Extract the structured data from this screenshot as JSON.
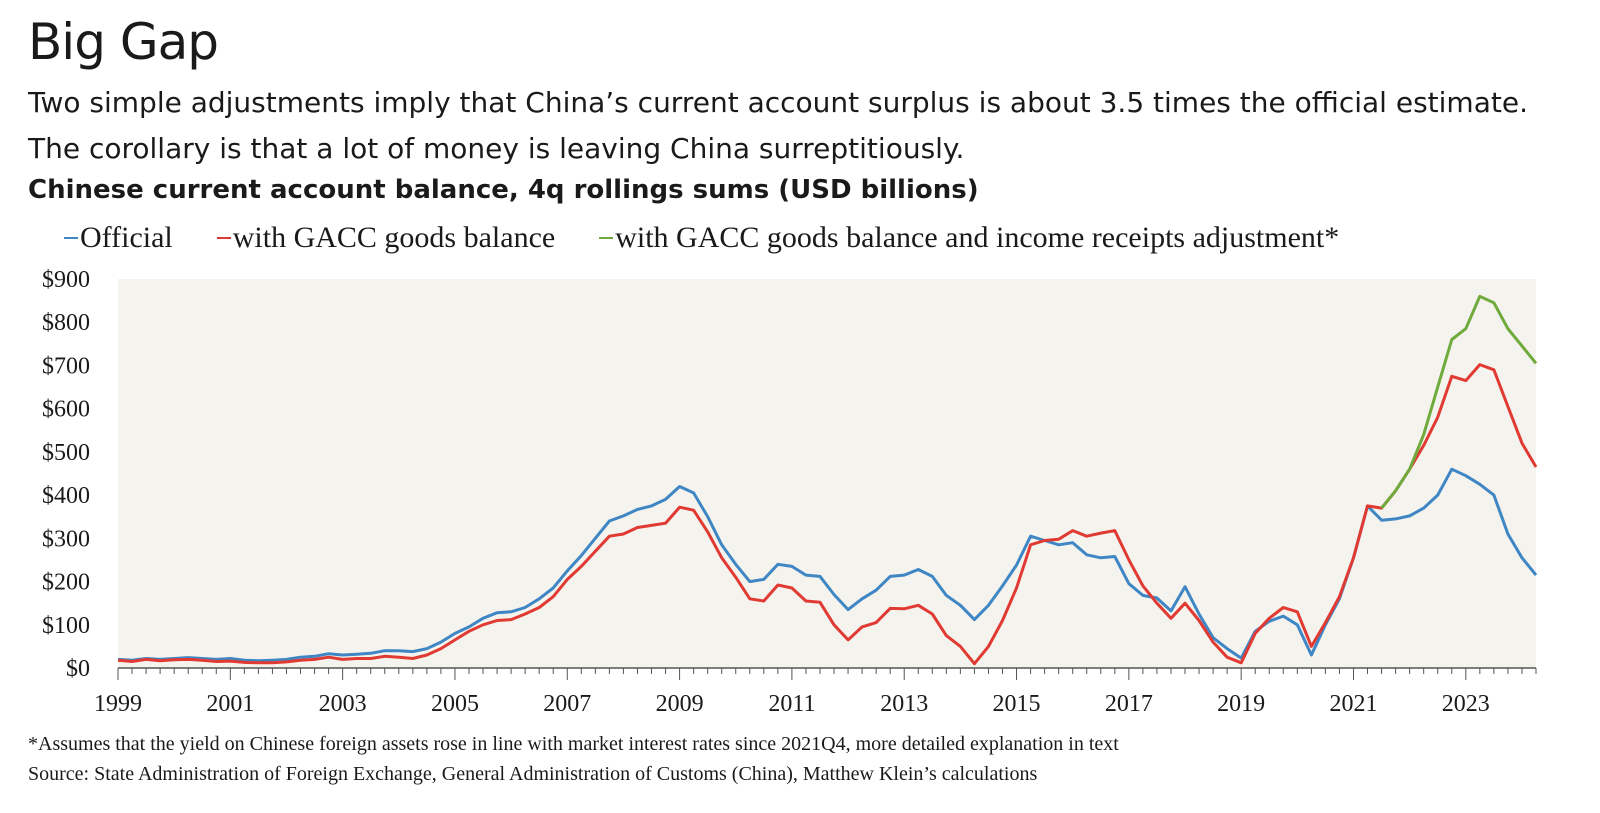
{
  "header": {
    "title": "Big Gap",
    "subtitle": "Two simple adjustments imply that China’s current account surplus is about 3.5 times the official estimate. The corollary is that a lot of money is leaving China surreptitiously.",
    "chart_title": "Chinese current account balance, 4q rollings sums (USD billions)"
  },
  "footer": {
    "footnote": "*Assumes that the yield on Chinese foreign assets rose in line with market interest rates since 2021Q4, more detailed explanation in text",
    "source": "Source: State Administration of Foreign Exchange, General Administration of Customs (China), Matthew Klein’s calculations"
  },
  "chart_data": {
    "type": "line",
    "title": "Chinese current account balance, 4q rollings sums (USD billions)",
    "x_start": "1999Q1",
    "x_frequency": "quarterly",
    "ylim": [
      0,
      900
    ],
    "yticks": [
      "$0",
      "$100",
      "$200",
      "$300",
      "$400",
      "$500",
      "$600",
      "$700",
      "$800",
      "$900"
    ],
    "xticks": [
      "1999",
      "2001",
      "2003",
      "2005",
      "2007",
      "2009",
      "2011",
      "2013",
      "2015",
      "2017",
      "2019",
      "2021",
      "2023"
    ],
    "background_color": "#f5f3ee",
    "grid": false,
    "legend_position": "top",
    "series": [
      {
        "name": "Official",
        "color": "#3f86c4",
        "values": [
          20,
          18,
          22,
          20,
          22,
          24,
          22,
          20,
          22,
          18,
          17,
          18,
          20,
          25,
          27,
          33,
          30,
          32,
          34,
          40,
          40,
          38,
          45,
          60,
          80,
          95,
          115,
          128,
          130,
          140,
          160,
          185,
          225,
          260,
          300,
          340,
          352,
          367,
          375,
          390,
          420,
          405,
          350,
          285,
          240,
          200,
          205,
          240,
          235,
          215,
          212,
          170,
          135,
          160,
          180,
          212,
          215,
          228,
          212,
          168,
          145,
          112,
          145,
          190,
          238,
          305,
          295,
          285,
          290,
          262,
          255,
          258,
          195,
          168,
          162,
          132,
          188,
          125,
          70,
          45,
          23,
          85,
          108,
          120,
          100,
          30,
          100,
          160,
          255,
          375,
          342,
          345,
          352,
          370,
          400,
          460,
          445,
          425,
          400,
          310,
          255,
          215
        ],
        "markers": false
      },
      {
        "name": "with GACC goods balance",
        "color": "#e03a33",
        "values": [
          18,
          15,
          20,
          17,
          19,
          20,
          18,
          15,
          16,
          13,
          12,
          12,
          14,
          18,
          20,
          25,
          20,
          22,
          22,
          27,
          25,
          22,
          30,
          45,
          65,
          85,
          100,
          110,
          112,
          125,
          140,
          165,
          205,
          235,
          270,
          305,
          310,
          325,
          330,
          335,
          372,
          365,
          315,
          255,
          210,
          160,
          155,
          192,
          185,
          155,
          152,
          100,
          65,
          95,
          105,
          138,
          137,
          145,
          125,
          75,
          50,
          10,
          50,
          110,
          185,
          285,
          295,
          298,
          318,
          305,
          312,
          318,
          250,
          190,
          150,
          115,
          150,
          110,
          60,
          25,
          12,
          80,
          115,
          140,
          130,
          50,
          105,
          165,
          255,
          375,
          370,
          410,
          460,
          515,
          580,
          675,
          665,
          702,
          690,
          605,
          520,
          465
        ],
        "markers": false
      },
      {
        "name": "with GACC goods balance and income receipts adjustment*",
        "color": "#6faa3c",
        "start_index": 90,
        "values": [
          370,
          410,
          460,
          540,
          650,
          760,
          785,
          860,
          845,
          785,
          745,
          705
        ],
        "markers": false
      }
    ]
  }
}
